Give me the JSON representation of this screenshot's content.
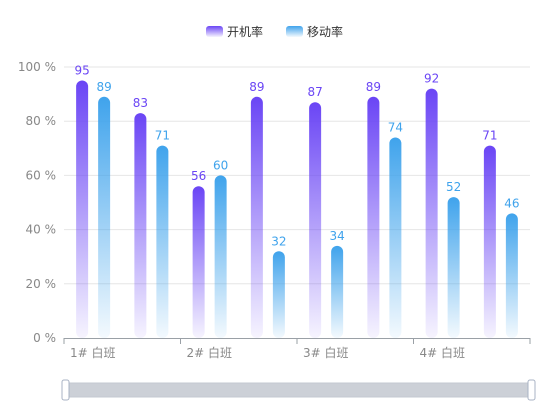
{
  "chart_data": {
    "type": "bar",
    "categories": [
      "1# 白班",
      "",
      "2# 白班",
      "",
      "3# 白班",
      "",
      "4# 白班",
      ""
    ],
    "x_tick_labels": [
      "1# 白班",
      "2# 白班",
      "3# 白班",
      "4# 白班"
    ],
    "series": [
      {
        "name": "开机率",
        "values": [
          95,
          83,
          56,
          89,
          87,
          89,
          92,
          71
        ],
        "color": "#6a45f5"
      },
      {
        "name": "移动率",
        "values": [
          89,
          71,
          60,
          32,
          34,
          74,
          52,
          46
        ],
        "color": "#3fa3ec"
      }
    ],
    "y_ticks": [
      "0 %",
      "20 %",
      "40 %",
      "60 %",
      "80 %",
      "100 %"
    ],
    "ylim": [
      0,
      100
    ],
    "grid": true,
    "legend_position": "top-center",
    "has_zoom_slider": true
  }
}
